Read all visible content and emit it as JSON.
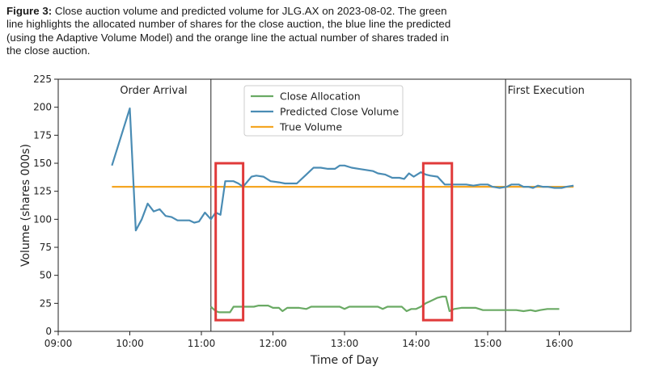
{
  "caption": {
    "label": "Figure 3:",
    "text": " Close auction volume and predicted volume for JLG.AX on 2023-08-02. The green line highlights the allocated number of shares for the close auction, the blue line the predicted (using the Adaptive Volume Model) and the orange line the actual number of shares traded in the close auction."
  },
  "chart_data": {
    "type": "line",
    "xlabel": "Time of Day",
    "ylabel": "Volume (shares 000s)",
    "xlim": [
      "09:00",
      "17:00"
    ],
    "ylim": [
      0,
      225
    ],
    "x_ticks": [
      "09:00",
      "10:00",
      "11:00",
      "12:00",
      "13:00",
      "14:00",
      "15:00",
      "16:00"
    ],
    "y_ticks": [
      0,
      25,
      50,
      75,
      100,
      125,
      150,
      175,
      200,
      225
    ],
    "grid": false,
    "legend_position": "top-center",
    "annotations": [
      {
        "text": "Order Arrival",
        "x": "10:20",
        "y": 212
      },
      {
        "text": "First Execution",
        "x": "15:49",
        "y": 212
      }
    ],
    "vlines": [
      "11:08",
      "15:15"
    ],
    "highlight_boxes": [
      {
        "x0": "11:12",
        "x1": "11:35",
        "y0": 10,
        "y1": 150
      },
      {
        "x0": "14:06",
        "x1": "14:30",
        "y0": 10,
        "y1": 150
      }
    ],
    "series": [
      {
        "name": "Close Allocation",
        "color": "#6aaa64",
        "points": [
          [
            "11:08",
            22
          ],
          [
            "11:12",
            18
          ],
          [
            "11:15",
            17
          ],
          [
            "11:18",
            17
          ],
          [
            "11:21",
            17
          ],
          [
            "11:24",
            17
          ],
          [
            "11:27",
            22
          ],
          [
            "11:32",
            22
          ],
          [
            "11:36",
            22
          ],
          [
            "11:40",
            22
          ],
          [
            "11:44",
            22
          ],
          [
            "11:48",
            23
          ],
          [
            "11:52",
            23
          ],
          [
            "11:56",
            23
          ],
          [
            "12:00",
            21
          ],
          [
            "12:05",
            21
          ],
          [
            "12:08",
            18
          ],
          [
            "12:12",
            21
          ],
          [
            "12:17",
            21
          ],
          [
            "12:22",
            21
          ],
          [
            "12:28",
            20
          ],
          [
            "12:32",
            22
          ],
          [
            "12:38",
            22
          ],
          [
            "12:44",
            22
          ],
          [
            "12:50",
            22
          ],
          [
            "12:56",
            22
          ],
          [
            "13:00",
            20
          ],
          [
            "13:04",
            22
          ],
          [
            "13:10",
            22
          ],
          [
            "13:16",
            22
          ],
          [
            "13:22",
            22
          ],
          [
            "13:28",
            22
          ],
          [
            "13:32",
            20
          ],
          [
            "13:36",
            22
          ],
          [
            "13:42",
            22
          ],
          [
            "13:48",
            22
          ],
          [
            "13:52",
            18
          ],
          [
            "13:56",
            20
          ],
          [
            "14:00",
            20
          ],
          [
            "14:04",
            22
          ],
          [
            "14:08",
            25
          ],
          [
            "14:12",
            27
          ],
          [
            "14:18",
            30
          ],
          [
            "14:22",
            31
          ],
          [
            "14:25",
            31
          ],
          [
            "14:28",
            18
          ],
          [
            "14:32",
            20
          ],
          [
            "14:38",
            21
          ],
          [
            "14:44",
            21
          ],
          [
            "14:50",
            21
          ],
          [
            "14:56",
            19
          ],
          [
            "15:00",
            19
          ],
          [
            "15:06",
            19
          ],
          [
            "15:12",
            19
          ],
          [
            "15:18",
            19
          ],
          [
            "15:24",
            19
          ],
          [
            "15:30",
            18
          ],
          [
            "15:36",
            19
          ],
          [
            "15:40",
            18
          ],
          [
            "15:44",
            19
          ],
          [
            "15:50",
            20
          ],
          [
            "15:54",
            20
          ],
          [
            "16:00",
            20
          ]
        ]
      },
      {
        "name": "Predicted Close Volume",
        "color": "#4a8cb4",
        "points": [
          [
            "09:45",
            148
          ],
          [
            "10:00",
            199
          ],
          [
            "10:05",
            90
          ],
          [
            "10:10",
            100
          ],
          [
            "10:15",
            114
          ],
          [
            "10:20",
            107
          ],
          [
            "10:25",
            109
          ],
          [
            "10:30",
            103
          ],
          [
            "10:35",
            102
          ],
          [
            "10:40",
            99
          ],
          [
            "10:45",
            99
          ],
          [
            "10:50",
            99
          ],
          [
            "10:54",
            97
          ],
          [
            "10:58",
            98
          ],
          [
            "11:03",
            106
          ],
          [
            "11:08",
            100
          ],
          [
            "11:12",
            106
          ],
          [
            "11:16",
            104
          ],
          [
            "11:20",
            134
          ],
          [
            "11:27",
            134
          ],
          [
            "11:31",
            132
          ],
          [
            "11:35",
            129
          ],
          [
            "11:42",
            138
          ],
          [
            "11:46",
            139
          ],
          [
            "11:52",
            138
          ],
          [
            "11:58",
            134
          ],
          [
            "12:05",
            133
          ],
          [
            "12:10",
            132
          ],
          [
            "12:15",
            132
          ],
          [
            "12:20",
            132
          ],
          [
            "12:28",
            140
          ],
          [
            "12:34",
            146
          ],
          [
            "12:40",
            146
          ],
          [
            "12:46",
            145
          ],
          [
            "12:52",
            145
          ],
          [
            "12:56",
            148
          ],
          [
            "13:00",
            148
          ],
          [
            "13:06",
            146
          ],
          [
            "13:12",
            145
          ],
          [
            "13:18",
            144
          ],
          [
            "13:24",
            143
          ],
          [
            "13:28",
            141
          ],
          [
            "13:34",
            140
          ],
          [
            "13:40",
            137
          ],
          [
            "13:46",
            137
          ],
          [
            "13:50",
            136
          ],
          [
            "13:54",
            141
          ],
          [
            "13:58",
            138
          ],
          [
            "14:04",
            142
          ],
          [
            "14:08",
            140
          ],
          [
            "14:12",
            139
          ],
          [
            "14:18",
            138
          ],
          [
            "14:24",
            131
          ],
          [
            "14:28",
            131
          ],
          [
            "14:36",
            131
          ],
          [
            "14:42",
            131
          ],
          [
            "14:48",
            130
          ],
          [
            "14:54",
            131
          ],
          [
            "15:00",
            131
          ],
          [
            "15:04",
            129
          ],
          [
            "15:10",
            128
          ],
          [
            "15:16",
            129
          ],
          [
            "15:20",
            131
          ],
          [
            "15:26",
            131
          ],
          [
            "15:30",
            129
          ],
          [
            "15:34",
            129
          ],
          [
            "15:38",
            128
          ],
          [
            "15:42",
            130
          ],
          [
            "15:46",
            129
          ],
          [
            "15:50",
            129
          ],
          [
            "15:56",
            128
          ],
          [
            "16:02",
            128
          ],
          [
            "16:06",
            129
          ],
          [
            "16:12",
            130
          ]
        ]
      },
      {
        "name": "True Volume",
        "color": "#f5a623",
        "points": [
          [
            "09:45",
            129
          ],
          [
            "16:12",
            129
          ]
        ]
      }
    ]
  }
}
